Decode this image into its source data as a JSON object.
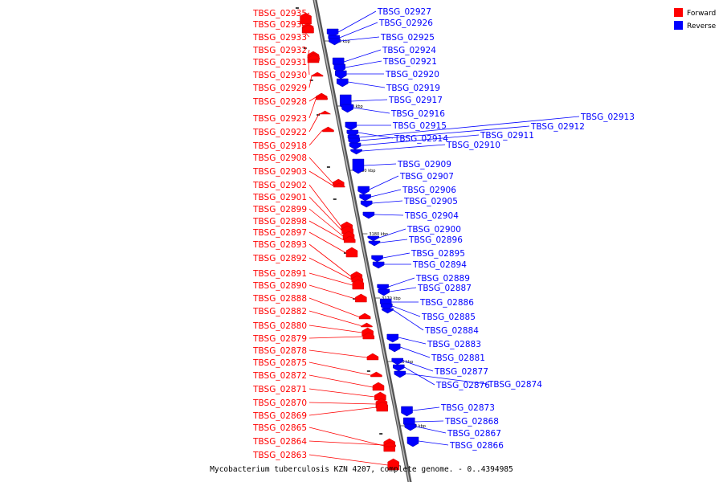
{
  "caption": "Mycobacterium tuberculosis KZN 4207, complete genome. - 0..4394985",
  "legend": [
    {
      "label": "Forward",
      "color": "#ff0000"
    },
    {
      "label": "Reverse",
      "color": "#0000ff"
    }
  ],
  "colors": {
    "forward": "#ff0000",
    "reverse": "#0000ff",
    "backbone": "#888888"
  },
  "ticks": [
    "3210 kbp",
    "3200 kbp",
    "3190 kbp",
    "3180 kbp",
    "3170 kbp",
    "3160 kbp",
    "3150 kbp"
  ],
  "forward_genes": [
    "TBSG_02935",
    "TBSG_02934",
    "TBSG_02933",
    "TBSG_02932",
    "TBSG_02931",
    "TBSG_02930",
    "TBSG_02929",
    "TBSG_02928",
    "TBSG_02923",
    "TBSG_02922",
    "TBSG_02918",
    "TBSG_02908",
    "TBSG_02903",
    "TBSG_02902",
    "TBSG_02901",
    "TBSG_02899",
    "TBSG_02898",
    "TBSG_02897",
    "TBSG_02893",
    "TBSG_02892",
    "TBSG_02891",
    "TBSG_02890",
    "TBSG_02888",
    "TBSG_02882",
    "TBSG_02880",
    "TBSG_02879",
    "TBSG_02878",
    "TBSG_02875",
    "TBSG_02872",
    "TBSG_02871",
    "TBSG_02870",
    "TBSG_02869",
    "TBSG_02865",
    "TBSG_02864",
    "TBSG_02863"
  ],
  "reverse_genes": [
    "TBSG_02927",
    "TBSG_02926",
    "TBSG_02925",
    "TBSG_02924",
    "TBSG_02921",
    "TBSG_02920",
    "TBSG_02919",
    "TBSG_02917",
    "TBSG_02916",
    "TBSG_02915",
    "TBSG_02914",
    "TBSG_02913",
    "TBSG_02912",
    "TBSG_02911",
    "TBSG_02910",
    "TBSG_02909",
    "TBSG_02907",
    "TBSG_02906",
    "TBSG_02905",
    "TBSG_02904",
    "TBSG_02900",
    "TBSG_02896",
    "TBSG_02895",
    "TBSG_02894",
    "TBSG_02889",
    "TBSG_02887",
    "TBSG_02886",
    "TBSG_02885",
    "TBSG_02884",
    "TBSG_02883",
    "TBSG_02881",
    "TBSG_02877",
    "TBSG_02876",
    "TBSG_02874",
    "TBSG_02873",
    "TBSG_02868",
    "TBSG_02867",
    "TBSG_02866"
  ]
}
